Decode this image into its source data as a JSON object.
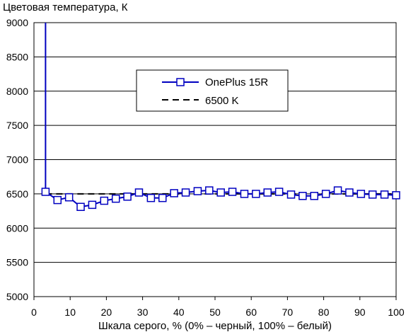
{
  "chart_data": {
    "type": "line",
    "title": "Цветовая температура, К",
    "xlabel": "Шкала серого, % (0% – черный, 100% – белый)",
    "ylabel": "",
    "xlim": [
      0,
      100
    ],
    "ylim": [
      5000,
      9000
    ],
    "x_ticks": [
      "0",
      "10",
      "20",
      "30",
      "40",
      "50",
      "60",
      "70",
      "80",
      "90",
      "100"
    ],
    "y_ticks": [
      "5000",
      "5500",
      "6000",
      "6500",
      "7000",
      "7500",
      "8000",
      "8500",
      "9000"
    ],
    "grid": "horizontal",
    "legend_position": "center-top",
    "series": [
      {
        "name": "OnePlus 15R",
        "color": "#0000c0",
        "marker": "square",
        "points": [
          [
            3.2,
            9000
          ],
          [
            3.2,
            6530
          ],
          [
            6.5,
            6410
          ],
          [
            9.7,
            6450
          ],
          [
            12.9,
            6310
          ],
          [
            16.1,
            6340
          ],
          [
            19.4,
            6400
          ],
          [
            22.6,
            6430
          ],
          [
            25.8,
            6460
          ],
          [
            29.0,
            6520
          ],
          [
            32.3,
            6440
          ],
          [
            35.5,
            6440
          ],
          [
            38.7,
            6510
          ],
          [
            41.9,
            6520
          ],
          [
            45.2,
            6540
          ],
          [
            48.4,
            6550
          ],
          [
            51.6,
            6520
          ],
          [
            54.8,
            6530
          ],
          [
            58.1,
            6500
          ],
          [
            61.3,
            6500
          ],
          [
            64.5,
            6520
          ],
          [
            67.7,
            6530
          ],
          [
            71.0,
            6490
          ],
          [
            74.2,
            6470
          ],
          [
            77.4,
            6470
          ],
          [
            80.6,
            6500
          ],
          [
            83.9,
            6550
          ],
          [
            87.1,
            6520
          ],
          [
            90.3,
            6500
          ],
          [
            93.5,
            6490
          ],
          [
            96.8,
            6490
          ],
          [
            100,
            6480
          ]
        ]
      },
      {
        "name": "6500 K",
        "color": "#000000",
        "style": "dashed",
        "points": [
          [
            3.2,
            6500
          ],
          [
            100,
            6500
          ]
        ]
      }
    ]
  }
}
